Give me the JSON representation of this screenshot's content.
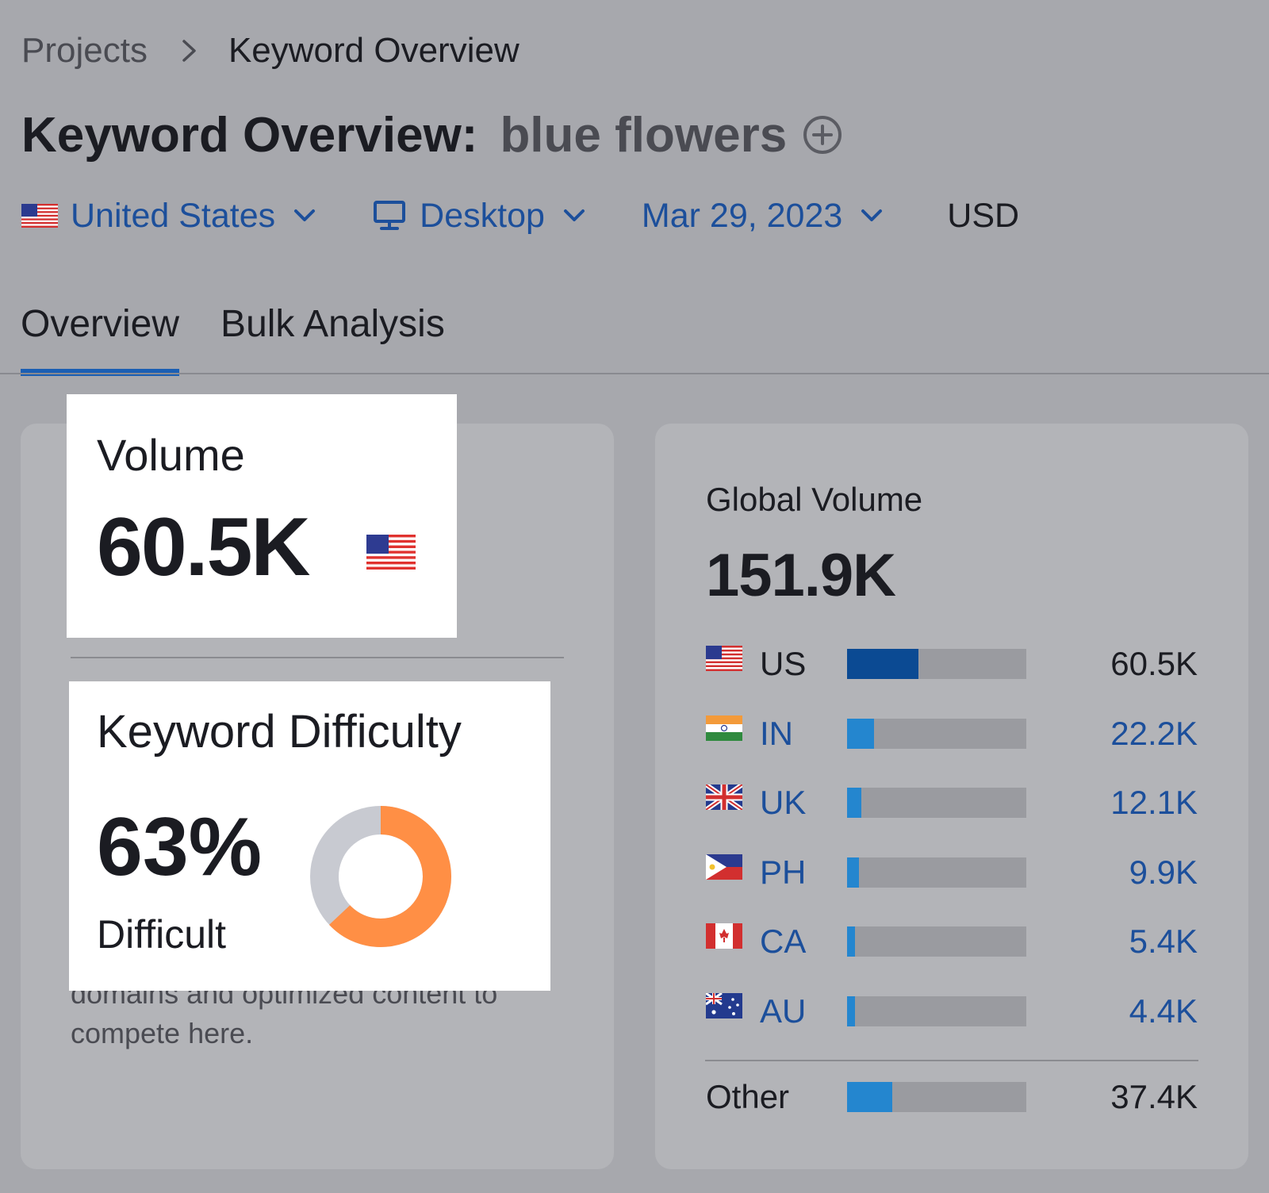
{
  "breadcrumb": {
    "root": "Projects",
    "current": "Keyword Overview"
  },
  "title": {
    "prefix": "Keyword Overview:",
    "keyword": "blue flowers"
  },
  "filters": {
    "country": "United States",
    "device": "Desktop",
    "date": "Mar 29, 2023",
    "currency": "USD"
  },
  "tabs": [
    {
      "label": "Overview",
      "active": true
    },
    {
      "label": "Bulk Analysis",
      "active": false
    }
  ],
  "volume": {
    "label": "Volume",
    "value": "60.5K"
  },
  "keyword_difficulty": {
    "label": "Keyword Difficulty",
    "value": "63%",
    "percent": 63,
    "level": "Difficult",
    "color": "#ff8f45",
    "track_color": "#c8cad1"
  },
  "difficulty_description": "domains and optimized content to compete here.",
  "global_volume": {
    "label": "Global Volume",
    "value": "151.9K",
    "countries": [
      {
        "code": "US",
        "value": "60.5K",
        "fraction": 0.4,
        "link": false
      },
      {
        "code": "IN",
        "value": "22.2K",
        "fraction": 0.15,
        "link": true
      },
      {
        "code": "UK",
        "value": "12.1K",
        "fraction": 0.08,
        "link": true
      },
      {
        "code": "PH",
        "value": "9.9K",
        "fraction": 0.065,
        "link": true
      },
      {
        "code": "CA",
        "value": "5.4K",
        "fraction": 0.045,
        "link": true
      },
      {
        "code": "AU",
        "value": "4.4K",
        "fraction": 0.045,
        "link": true
      }
    ],
    "other": {
      "label": "Other",
      "value": "37.4K",
      "fraction": 0.25
    }
  },
  "colors": {
    "accent": "#1b5fb3",
    "link": "#1c4f9b",
    "bar_us": "#0b4a93",
    "bar_other": "#2486cf",
    "bar_track": "#9a9ba0"
  }
}
